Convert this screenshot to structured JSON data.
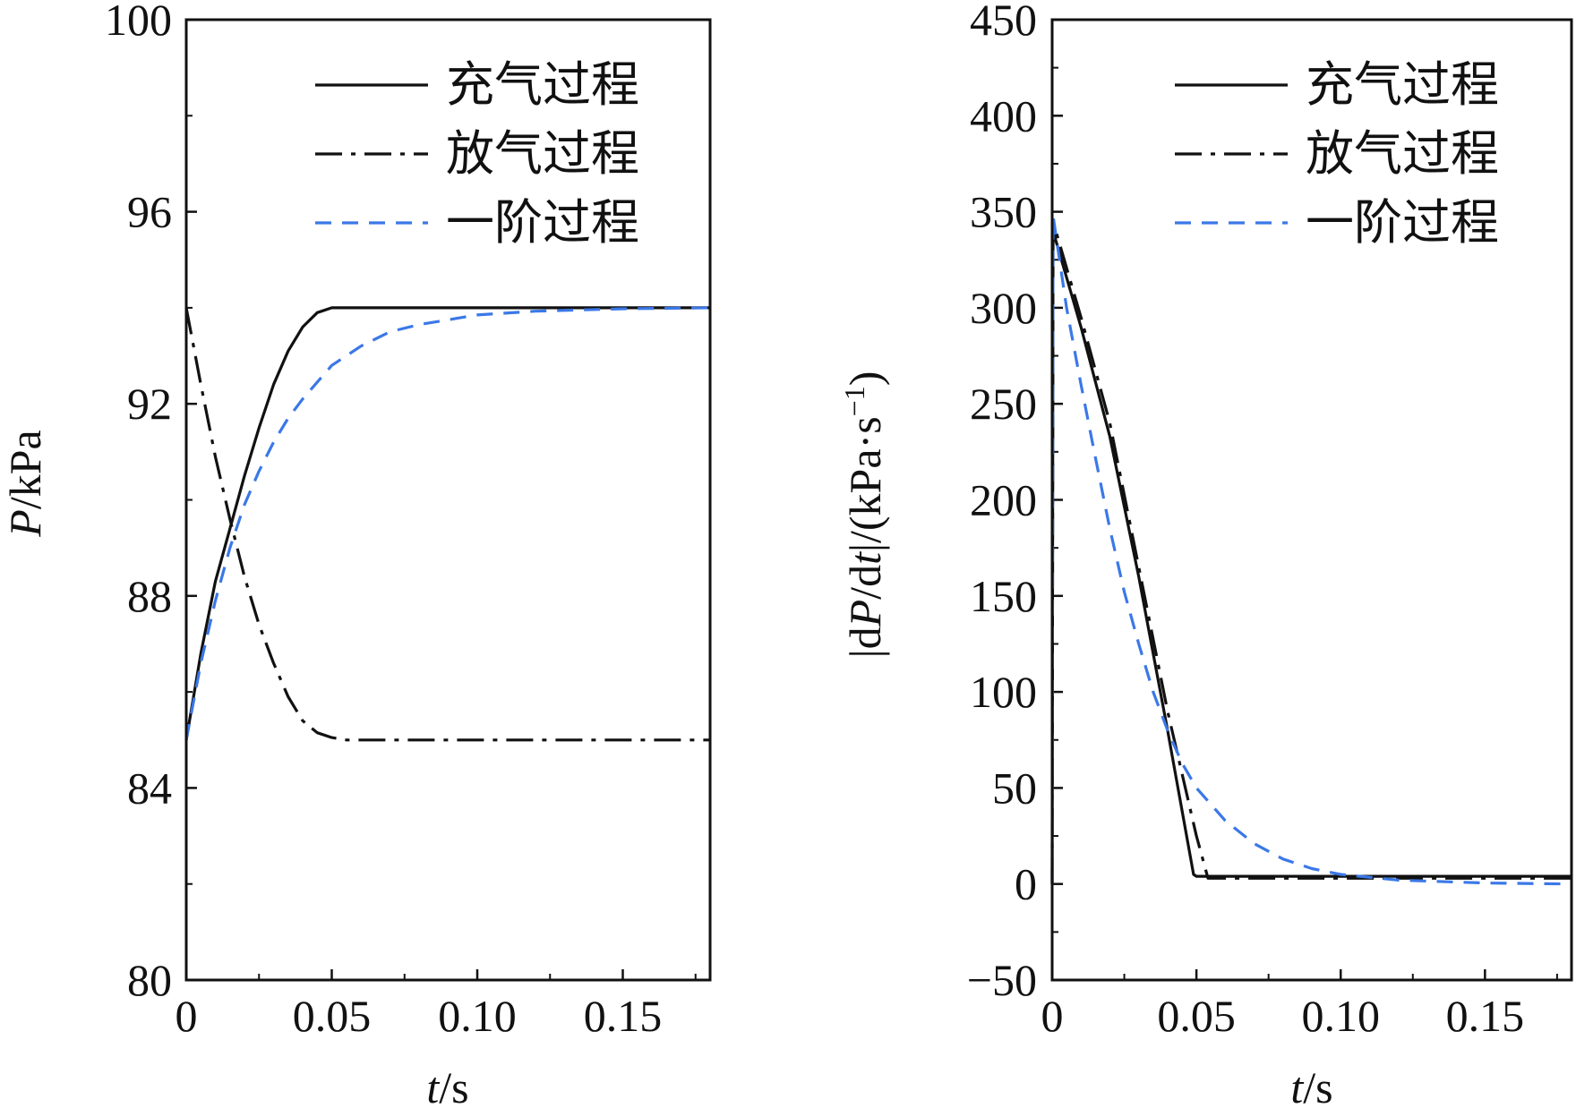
{
  "colors": {
    "charge": "#111111",
    "discharge": "#111111",
    "first_order": "#3b78e7",
    "axis": "#111111"
  },
  "chart_data": [
    {
      "type": "line",
      "xlabel": {
        "italic": "t",
        "rest": "/s"
      },
      "ylabel": {
        "italic": "P",
        "rest": "/kPa"
      },
      "xlim": [
        0,
        0.18
      ],
      "ylim": [
        80,
        100
      ],
      "xticks": [
        {
          "value": 0,
          "label": "0"
        },
        {
          "value": 0.05,
          "label": "0.05"
        },
        {
          "value": 0.1,
          "label": "0.10"
        },
        {
          "value": 0.15,
          "label": "0.15"
        }
      ],
      "yticks": [
        {
          "value": 80,
          "label": "80"
        },
        {
          "value": 84,
          "label": "84"
        },
        {
          "value": 88,
          "label": "88"
        },
        {
          "value": 92,
          "label": "92"
        },
        {
          "value": 96,
          "label": "96"
        },
        {
          "value": 100,
          "label": "100"
        }
      ],
      "legend_position": "top-right",
      "series": [
        {
          "name": "充气过程",
          "style": "solid",
          "color": "#111111",
          "points": [
            [
              0,
              85.0
            ],
            [
              0.005,
              86.8
            ],
            [
              0.01,
              88.3
            ],
            [
              0.015,
              89.4
            ],
            [
              0.02,
              90.5
            ],
            [
              0.025,
              91.5
            ],
            [
              0.03,
              92.4
            ],
            [
              0.035,
              93.1
            ],
            [
              0.04,
              93.6
            ],
            [
              0.045,
              93.9
            ],
            [
              0.05,
              94.0
            ],
            [
              0.18,
              94.0
            ]
          ]
        },
        {
          "name": "放气过程",
          "style": "dashdot",
          "color": "#111111",
          "points": [
            [
              0,
              94.0
            ],
            [
              0.005,
              92.4
            ],
            [
              0.01,
              90.9
            ],
            [
              0.015,
              89.6
            ],
            [
              0.02,
              88.4
            ],
            [
              0.025,
              87.4
            ],
            [
              0.03,
              86.6
            ],
            [
              0.035,
              85.9
            ],
            [
              0.04,
              85.4
            ],
            [
              0.045,
              85.15
            ],
            [
              0.05,
              85.05
            ],
            [
              0.055,
              85.0
            ],
            [
              0.18,
              85.0
            ]
          ]
        },
        {
          "name": "一阶过程",
          "style": "dashed",
          "color": "#3b78e7",
          "points": [
            [
              0,
              85.0
            ],
            [
              0.005,
              86.6
            ],
            [
              0.01,
              87.9
            ],
            [
              0.015,
              89.0
            ],
            [
              0.02,
              89.9
            ],
            [
              0.025,
              90.6
            ],
            [
              0.03,
              91.2
            ],
            [
              0.035,
              91.7
            ],
            [
              0.04,
              92.1
            ],
            [
              0.05,
              92.8
            ],
            [
              0.06,
              93.2
            ],
            [
              0.07,
              93.5
            ],
            [
              0.08,
              93.65
            ],
            [
              0.09,
              93.75
            ],
            [
              0.1,
              93.85
            ],
            [
              0.12,
              93.93
            ],
            [
              0.15,
              93.98
            ],
            [
              0.18,
              94.0
            ]
          ]
        }
      ]
    },
    {
      "type": "line",
      "xlabel": {
        "italic": "t",
        "rest": "/s"
      },
      "ylabel_parts": [
        {
          "text": "|d",
          "italic": false,
          "sup": false
        },
        {
          "text": "P",
          "italic": true,
          "sup": false
        },
        {
          "text": "/d",
          "italic": false,
          "sup": false
        },
        {
          "text": "t",
          "italic": true,
          "sup": false
        },
        {
          "text": "|/(kPa·s",
          "italic": false,
          "sup": false
        },
        {
          "text": "−1",
          "italic": false,
          "sup": true
        },
        {
          "text": ")",
          "italic": false,
          "sup": false
        }
      ],
      "xlim": [
        0,
        0.18
      ],
      "ylim": [
        -50,
        450
      ],
      "xticks": [
        {
          "value": 0,
          "label": "0"
        },
        {
          "value": 0.05,
          "label": "0.05"
        },
        {
          "value": 0.1,
          "label": "0.10"
        },
        {
          "value": 0.15,
          "label": "0.15"
        }
      ],
      "yticks": [
        {
          "value": -50,
          "label": "−50"
        },
        {
          "value": 0,
          "label": "0"
        },
        {
          "value": 50,
          "label": "50"
        },
        {
          "value": 100,
          "label": "100"
        },
        {
          "value": 150,
          "label": "150"
        },
        {
          "value": 200,
          "label": "200"
        },
        {
          "value": 250,
          "label": "250"
        },
        {
          "value": 300,
          "label": "300"
        },
        {
          "value": 350,
          "label": "350"
        },
        {
          "value": 400,
          "label": "400"
        },
        {
          "value": 450,
          "label": "450"
        }
      ],
      "legend_position": "top-right",
      "series": [
        {
          "name": "充气过程",
          "style": "solid",
          "color": "#111111",
          "points": [
            [
              0,
              0
            ],
            [
              0.0003,
              340
            ],
            [
              0.01,
              290
            ],
            [
              0.02,
              233
            ],
            [
              0.03,
              160
            ],
            [
              0.04,
              80
            ],
            [
              0.049,
              5
            ],
            [
              0.05,
              4
            ],
            [
              0.18,
              4
            ]
          ]
        },
        {
          "name": "放气过程",
          "style": "dashdot",
          "color": "#111111",
          "points": [
            [
              0,
              0
            ],
            [
              0.0003,
              345
            ],
            [
              0.01,
              295
            ],
            [
              0.02,
              240
            ],
            [
              0.03,
              165
            ],
            [
              0.04,
              90
            ],
            [
              0.05,
              25
            ],
            [
              0.054,
              3
            ],
            [
              0.18,
              3
            ]
          ]
        },
        {
          "name": "一阶过程",
          "style": "dashed",
          "color": "#3b78e7",
          "points": [
            [
              0,
              0
            ],
            [
              0.0003,
              348
            ],
            [
              0.005,
              300
            ],
            [
              0.01,
              260
            ],
            [
              0.015,
              222
            ],
            [
              0.02,
              185
            ],
            [
              0.025,
              152
            ],
            [
              0.03,
              125
            ],
            [
              0.035,
              100
            ],
            [
              0.04,
              80
            ],
            [
              0.045,
              63
            ],
            [
              0.05,
              50
            ],
            [
              0.06,
              33
            ],
            [
              0.07,
              21
            ],
            [
              0.08,
              13
            ],
            [
              0.09,
              8
            ],
            [
              0.1,
              5
            ],
            [
              0.12,
              2
            ],
            [
              0.15,
              0.5
            ],
            [
              0.18,
              0
            ]
          ]
        }
      ]
    }
  ]
}
